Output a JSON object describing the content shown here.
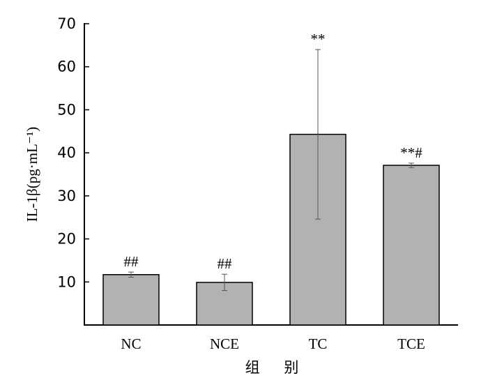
{
  "chart_data": {
    "type": "bar",
    "categories": [
      "NC",
      "NCE",
      "TC",
      "TCE"
    ],
    "values": [
      11.7,
      9.9,
      44.3,
      37.1
    ],
    "errors": [
      0.6,
      1.9,
      19.7,
      0.5
    ],
    "annotations": [
      "##",
      "##",
      "**",
      "**#"
    ],
    "ylabel": "IL-1β(pg·mL⁻¹)",
    "xlabel": "组 别",
    "ylim": [
      0,
      70
    ],
    "yticks": [
      10,
      20,
      30,
      40,
      50,
      60,
      70
    ],
    "bar_color": "#b2b2b2",
    "grid": false
  }
}
